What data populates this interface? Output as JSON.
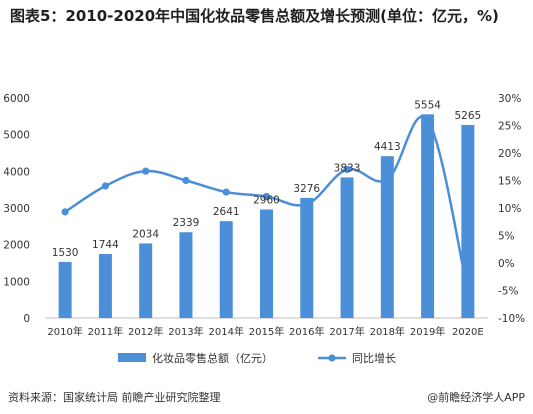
{
  "header": {
    "title": "图表5：2010-2020年中国化妆品零售总额及增长预测(单位：亿元，%)"
  },
  "footer": {
    "source": "资料来源：国家统计局 前瞻产业研究院整理",
    "credit": "@前瞻经济学人APP"
  },
  "colors": {
    "bar": "#4a8fd8",
    "line": "#4a8fd8",
    "axis_text": "#333333",
    "grid": "#dcdcdc"
  },
  "chart_data": {
    "type": "bar",
    "title": "图表5：2010-2020年中国化妆品零售总额及增长预测(单位：亿元，%)",
    "categories": [
      "2010年",
      "2011年",
      "2012年",
      "2013年",
      "2014年",
      "2015年",
      "2016年",
      "2017年",
      "2018年",
      "2019年",
      "2020E"
    ],
    "series": [
      {
        "name": "化妆品零售总额（亿元）",
        "type": "bar",
        "axis": "left",
        "values": [
          1530,
          1744,
          2034,
          2339,
          2641,
          2960,
          3276,
          3833,
          4413,
          5554,
          5265
        ],
        "value_labels": [
          "1530",
          "1744",
          "2034",
          "2339",
          "2641",
          "2960",
          "3276",
          "3833",
          "4413",
          "5554",
          "5265"
        ]
      },
      {
        "name": "同比增长",
        "type": "line",
        "axis": "right",
        "values": [
          9.3,
          14.0,
          16.7,
          15.0,
          12.9,
          12.1,
          10.7,
          17.0,
          15.2,
          26.0,
          -5.2
        ]
      }
    ],
    "y_left": {
      "ylim": [
        0,
        6000
      ],
      "ticks": [
        "0",
        "1000",
        "2000",
        "3000",
        "4000",
        "5000",
        "6000"
      ]
    },
    "y_right": {
      "ylim": [
        -10,
        30
      ],
      "ticks": [
        "-10%",
        "-5%",
        "0%",
        "5%",
        "10%",
        "15%",
        "20%",
        "25%",
        "30%"
      ]
    },
    "grid": false,
    "legend": {
      "position": "bottom",
      "bar_label": "化妆品零售总额（亿元）",
      "line_label": "同比增长"
    }
  }
}
